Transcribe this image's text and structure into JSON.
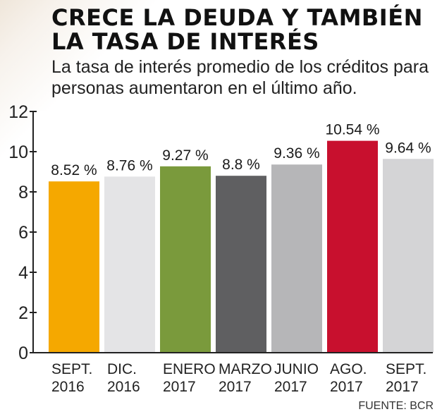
{
  "header": {
    "title_line1": "CRECE LA DEUDA Y TAMBIÉN",
    "title_line2": "LA TASA DE INTERÉS",
    "subtitle_line1": "La tasa de interés promedio de los créditos para",
    "subtitle_line2": "personas aumentaron en el último año."
  },
  "source": "FUENTE: BCR",
  "chart_data": {
    "type": "bar",
    "title": "CRECE LA DEUDA Y TAMBIÉN LA TASA DE INTERÉS",
    "subtitle": "La tasa de interés promedio de los créditos para personas aumentaron en el último año.",
    "xlabel": "",
    "ylabel": "",
    "ylim": [
      0,
      12
    ],
    "yticks": [
      0,
      2,
      4,
      6,
      8,
      10,
      12
    ],
    "grid": false,
    "categories": [
      [
        "SEPT.",
        "2016"
      ],
      [
        "DIC.",
        "2016"
      ],
      [
        "ENERO",
        "2017"
      ],
      [
        "MARZO",
        "2017"
      ],
      [
        "JUNIO",
        "2017"
      ],
      [
        "AGO.",
        "2017"
      ],
      [
        "SEPT.",
        "2017"
      ]
    ],
    "values": [
      8.52,
      8.76,
      9.27,
      8.8,
      9.36,
      10.54,
      9.64
    ],
    "data_labels": [
      "8.52 %",
      "8.76 %",
      "9.27 %",
      "8.8 %",
      "9.36 %",
      "10.54 %",
      "9.64 %"
    ],
    "colors": [
      "#f5a800",
      "#e4e4e6",
      "#7a9a3c",
      "#5f5f61",
      "#b6b6b8",
      "#c8102e",
      "#d4d4d6"
    ]
  }
}
